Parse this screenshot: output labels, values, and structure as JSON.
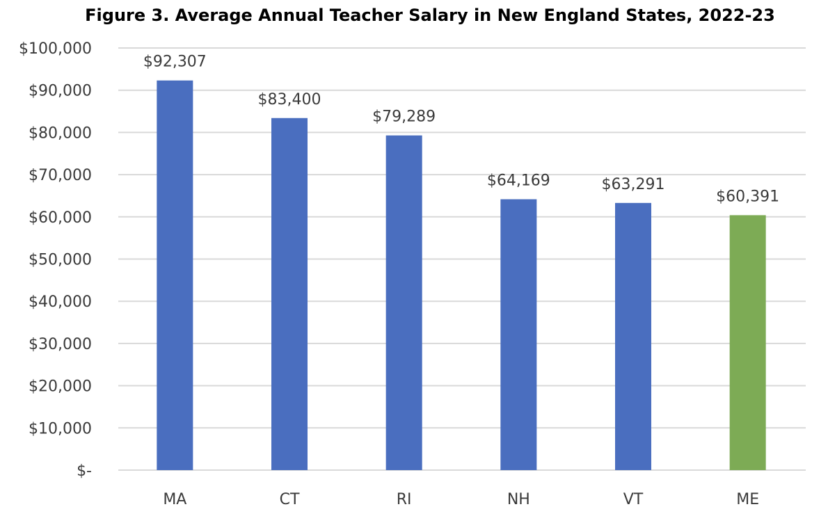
{
  "chart_data": {
    "type": "bar",
    "title": "Figure 3. Average Annual Teacher Salary in New England States, 2022-23",
    "xlabel": "",
    "ylabel": "",
    "categories": [
      "MA",
      "CT",
      "RI",
      "NH",
      "VT",
      "ME"
    ],
    "values": [
      92307,
      83400,
      79289,
      64169,
      63291,
      60391
    ],
    "data_labels": [
      "$92,307",
      "$83,400",
      "$79,289",
      "$64,169",
      "$63,291",
      "$60,391"
    ],
    "bar_colors": [
      "#4a6ebf",
      "#4a6ebf",
      "#4a6ebf",
      "#4a6ebf",
      "#4a6ebf",
      "#7dab55"
    ],
    "ylim": [
      0,
      100000
    ],
    "yticks": [
      0,
      10000,
      20000,
      30000,
      40000,
      50000,
      60000,
      70000,
      80000,
      90000,
      100000
    ],
    "ytick_labels": [
      "$-",
      "$10,000",
      "$20,000",
      "$30,000",
      "$40,000",
      "$50,000",
      "$60,000",
      "$70,000",
      "$80,000",
      "$90,000",
      "$100,000"
    ],
    "grid": true,
    "legend": "none",
    "gridline_color": "#d9d9d9"
  }
}
